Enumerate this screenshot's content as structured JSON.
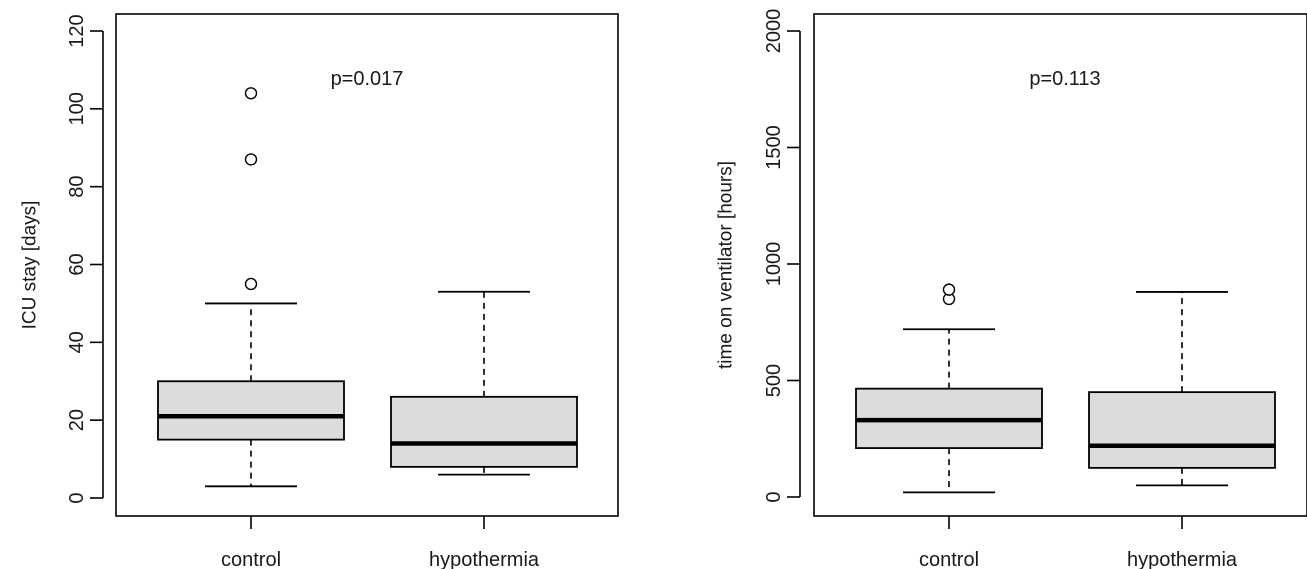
{
  "colors": {
    "box_fill": "#dcdcdc",
    "stroke": "#000000"
  },
  "chart_data": [
    {
      "type": "box",
      "xlabel": "",
      "ylabel": "ICU stay [days]",
      "ylim": [
        -5,
        125
      ],
      "yticks": [
        0,
        20,
        40,
        60,
        80,
        100,
        120
      ],
      "annotation": "p=0.017",
      "categories": [
        "control",
        "hypothermia"
      ],
      "boxes": [
        {
          "name": "control",
          "whisker_low": 3,
          "q1": 15,
          "median": 21,
          "q3": 30,
          "whisker_high": 50,
          "outliers": [
            55,
            87,
            104
          ]
        },
        {
          "name": "hypothermia",
          "whisker_low": 6,
          "q1": 8,
          "median": 14,
          "q3": 26,
          "whisker_high": 53,
          "outliers": []
        }
      ],
      "grid": false
    },
    {
      "type": "box",
      "xlabel": "",
      "ylabel": "time on ventilator [hours]",
      "ylim": [
        -80,
        2070
      ],
      "yticks": [
        0,
        500,
        1000,
        1500,
        2000
      ],
      "annotation": "p=0.113",
      "categories": [
        "control",
        "hypothermia"
      ],
      "boxes": [
        {
          "name": "control",
          "whisker_low": 20,
          "q1": 210,
          "median": 330,
          "q3": 465,
          "whisker_high": 720,
          "outliers": [
            850,
            890
          ]
        },
        {
          "name": "hypothermia",
          "whisker_low": 50,
          "q1": 125,
          "median": 220,
          "q3": 450,
          "whisker_high": 880,
          "outliers": []
        }
      ],
      "grid": false
    }
  ]
}
